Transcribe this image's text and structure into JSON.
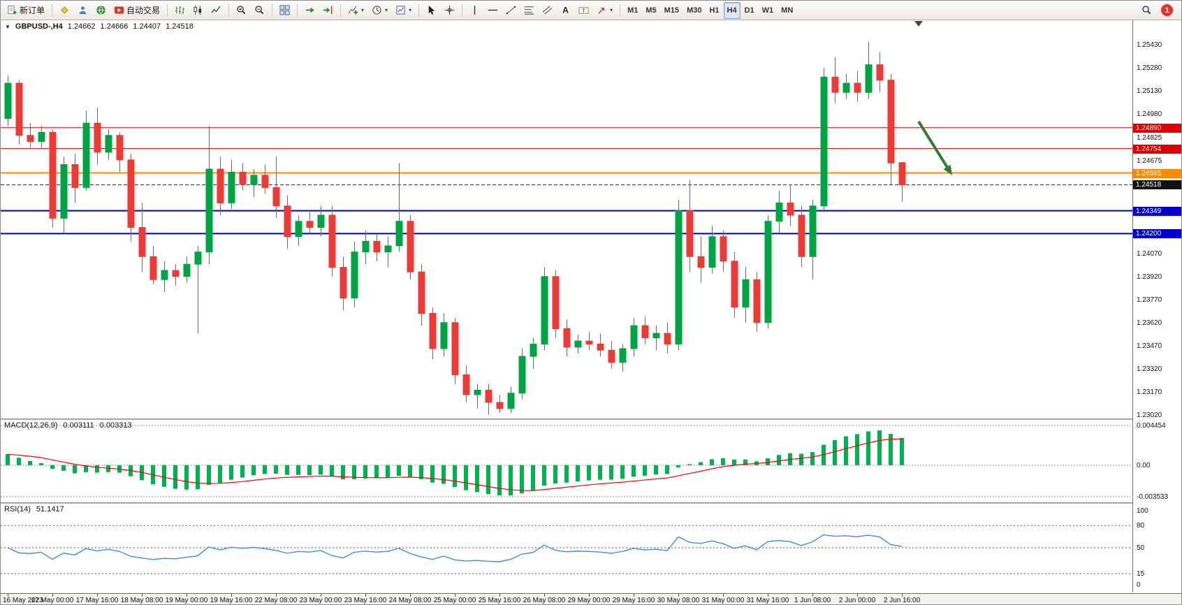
{
  "toolbar": {
    "caret": "▾",
    "notification_count": "1",
    "groups": [
      {
        "items": [
          {
            "name": "new-order-button",
            "icon": "doc-plus",
            "label": "新订单"
          }
        ]
      },
      {
        "items": [
          {
            "name": "market-watch-button",
            "icon": "diamond"
          },
          {
            "name": "navigator-button",
            "icon": "person"
          },
          {
            "name": "terminal-button",
            "icon": "terminal"
          },
          {
            "name": "autotrading-button",
            "icon": "play",
            "label": "自动交易"
          }
        ]
      },
      {
        "items": [
          {
            "name": "bar-chart-button",
            "icon": "bars"
          },
          {
            "name": "candlestick-chart-button",
            "icon": "candles"
          },
          {
            "name": "line-chart-button",
            "icon": "linechart"
          }
        ]
      },
      {
        "items": [
          {
            "name": "zoom-in-button",
            "icon": "zoom-in"
          },
          {
            "name": "zoom-out-button",
            "icon": "zoom-out"
          }
        ]
      },
      {
        "items": [
          {
            "name": "tile-windows-button",
            "icon": "tile"
          }
        ]
      },
      {
        "items": [
          {
            "name": "auto-scroll-button",
            "icon": "autoscroll"
          },
          {
            "name": "chart-shift-button",
            "icon": "chartshift"
          }
        ]
      },
      {
        "items": [
          {
            "name": "indicators-button",
            "icon": "indicator-plus",
            "dropdown": true
          },
          {
            "name": "periods-button",
            "icon": "clock",
            "dropdown": true
          },
          {
            "name": "templates-button",
            "icon": "template",
            "dropdown": true
          }
        ]
      },
      {
        "items": [
          {
            "name": "cursor-button",
            "icon": "pointer"
          },
          {
            "name": "crosshair-button",
            "icon": "crosshair"
          }
        ]
      },
      {
        "items": [
          {
            "name": "vertical-line-button",
            "icon": "vline"
          },
          {
            "name": "horizontal-line-button",
            "icon": "hline"
          },
          {
            "name": "trendline-button",
            "icon": "trendline"
          },
          {
            "name": "fibonacci-button",
            "icon": "fibo"
          },
          {
            "name": "channel-button",
            "icon": "channel"
          },
          {
            "name": "text-button",
            "icon": "textA"
          },
          {
            "name": "label-button",
            "icon": "textlabel"
          },
          {
            "name": "arrows-button",
            "icon": "arrowtool",
            "dropdown": true
          }
        ]
      },
      {
        "kind": "timeframes",
        "items": [
          {
            "name": "timeframe-m1",
            "label": "M1"
          },
          {
            "name": "timeframe-m5",
            "label": "M5"
          },
          {
            "name": "timeframe-m15",
            "label": "M15"
          },
          {
            "name": "timeframe-m30",
            "label": "M30"
          },
          {
            "name": "timeframe-h1",
            "label": "H1"
          },
          {
            "name": "timeframe-h4",
            "label": "H4",
            "active": true
          },
          {
            "name": "timeframe-d1",
            "label": "D1"
          },
          {
            "name": "timeframe-w1",
            "label": "W1"
          },
          {
            "name": "timeframe-mn",
            "label": "MN"
          }
        ]
      }
    ]
  },
  "chart_data": {
    "type": "candlestick",
    "symbol_period": "GBPUSD-,H4",
    "chart_title_marker": "▼",
    "ohlc_display": {
      "open": "1.24662",
      "high": "1.24666",
      "low": "1.24407",
      "close": "1.24518"
    },
    "up_color": "#00a443",
    "down_color": "#ea3b34",
    "price_axis": {
      "min": 1.22995,
      "max": 1.2559,
      "tick_labels": [
        "1.25430",
        "1.25280",
        "1.25130",
        "1.24980",
        "1.24825",
        "1.24675",
        "1.24070",
        "1.23920",
        "1.23770",
        "1.23620",
        "1.23470",
        "1.23320",
        "1.23170",
        "1.23020"
      ],
      "badges": [
        {
          "label": "1.24890",
          "price": 1.2489,
          "color": "#e00000"
        },
        {
          "label": "1.24754",
          "price": 1.24754,
          "color": "#e00000"
        },
        {
          "label": "1.24595",
          "price": 1.24595,
          "color": "#ff8a00"
        },
        {
          "label": "1.24518",
          "price": 1.24518,
          "color": "#111111",
          "current": true
        },
        {
          "label": "1.24349",
          "price": 1.24349,
          "color": "#0000cc"
        },
        {
          "label": "1.24200",
          "price": 1.242,
          "color": "#0000cc"
        }
      ]
    },
    "hlines": [
      {
        "price": 1.2489,
        "color": "#e00000",
        "width": 1
      },
      {
        "price": 1.24754,
        "color": "#e00000",
        "width": 1
      },
      {
        "price": 1.24595,
        "color": "#ff8a00",
        "width": 2
      },
      {
        "price": 1.24349,
        "color": "#0000cc",
        "width": 2
      },
      {
        "price": 1.242,
        "color": "#0000cc",
        "width": 2
      }
    ],
    "current_price": {
      "price": 1.24518,
      "label": "1.24518"
    },
    "shift_marker_bar": 81.5,
    "annotation_arrow": {
      "x1_bar": 81.5,
      "y1_price": 1.2493,
      "x2_bar": 84.5,
      "y2_price": 1.2458,
      "color": "#2e7d32"
    },
    "candles": [
      [
        1.2495,
        1.2523,
        1.249,
        1.2518
      ],
      [
        1.2518,
        1.252,
        1.2478,
        1.2484
      ],
      [
        1.2484,
        1.2492,
        1.2476,
        1.248
      ],
      [
        1.248,
        1.249,
        1.2476,
        1.2486
      ],
      [
        1.2486,
        1.2488,
        1.2424,
        1.243
      ],
      [
        1.243,
        1.247,
        1.242,
        1.2465
      ],
      [
        1.2465,
        1.2472,
        1.244,
        1.245
      ],
      [
        1.245,
        1.25,
        1.2448,
        1.2492
      ],
      [
        1.2492,
        1.2502,
        1.2465,
        1.2473
      ],
      [
        1.2473,
        1.2488,
        1.2468,
        1.2484
      ],
      [
        1.2484,
        1.2486,
        1.246,
        1.2468
      ],
      [
        1.2468,
        1.2472,
        1.2415,
        1.2424
      ],
      [
        1.2424,
        1.244,
        1.2395,
        1.2405
      ],
      [
        1.2405,
        1.2412,
        1.2387,
        1.239
      ],
      [
        1.239,
        1.2402,
        1.2382,
        1.2396
      ],
      [
        1.2396,
        1.24,
        1.2386,
        1.2392
      ],
      [
        1.2392,
        1.2405,
        1.2388,
        1.24
      ],
      [
        1.24,
        1.2412,
        1.2355,
        1.2408
      ],
      [
        1.2408,
        1.249,
        1.24,
        1.2462
      ],
      [
        1.2462,
        1.247,
        1.2432,
        1.244
      ],
      [
        1.244,
        1.2468,
        1.2436,
        1.246
      ],
      [
        1.246,
        1.2466,
        1.2448,
        1.2452
      ],
      [
        1.2452,
        1.2462,
        1.2444,
        1.2458
      ],
      [
        1.2458,
        1.2465,
        1.2446,
        1.245
      ],
      [
        1.245,
        1.247,
        1.243,
        1.2438
      ],
      [
        1.2438,
        1.2445,
        1.241,
        1.2418
      ],
      [
        1.2418,
        1.2432,
        1.2412,
        1.2428
      ],
      [
        1.2428,
        1.2434,
        1.242,
        1.2424
      ],
      [
        1.2424,
        1.2438,
        1.2418,
        1.2432
      ],
      [
        1.2432,
        1.2438,
        1.2392,
        1.2398
      ],
      [
        1.2398,
        1.2405,
        1.237,
        1.2378
      ],
      [
        1.2378,
        1.2415,
        1.2372,
        1.2408
      ],
      [
        1.2408,
        1.2422,
        1.24,
        1.2415
      ],
      [
        1.2415,
        1.242,
        1.2402,
        1.2408
      ],
      [
        1.2408,
        1.2418,
        1.2398,
        1.2412
      ],
      [
        1.2412,
        1.2466,
        1.2408,
        1.2428
      ],
      [
        1.2428,
        1.2432,
        1.239,
        1.2395
      ],
      [
        1.2395,
        1.24,
        1.236,
        1.2368
      ],
      [
        1.2368,
        1.2372,
        1.2338,
        1.2345
      ],
      [
        1.2345,
        1.2368,
        1.234,
        1.2362
      ],
      [
        1.2362,
        1.2365,
        1.2322,
        1.2328
      ],
      [
        1.2328,
        1.2334,
        1.231,
        1.2315
      ],
      [
        1.2315,
        1.2322,
        1.2306,
        1.2318
      ],
      [
        1.2318,
        1.2322,
        1.2302,
        1.231
      ],
      [
        1.231,
        1.2315,
        1.2303,
        1.2306
      ],
      [
        1.2306,
        1.232,
        1.2303,
        1.2316
      ],
      [
        1.2316,
        1.2345,
        1.2312,
        1.234
      ],
      [
        1.234,
        1.2352,
        1.2332,
        1.2348
      ],
      [
        1.2348,
        1.2398,
        1.2344,
        1.2392
      ],
      [
        1.2392,
        1.2396,
        1.2352,
        1.2358
      ],
      [
        1.2358,
        1.2364,
        1.234,
        1.2346
      ],
      [
        1.2346,
        1.2354,
        1.2342,
        1.235
      ],
      [
        1.235,
        1.2356,
        1.2344,
        1.2348
      ],
      [
        1.2348,
        1.2355,
        1.234,
        1.2344
      ],
      [
        1.2344,
        1.235,
        1.2332,
        1.2336
      ],
      [
        1.2336,
        1.2348,
        1.233,
        1.2345
      ],
      [
        1.2345,
        1.2365,
        1.234,
        1.236
      ],
      [
        1.236,
        1.2366,
        1.2348,
        1.2352
      ],
      [
        1.2352,
        1.236,
        1.2344,
        1.2355
      ],
      [
        1.2355,
        1.2362,
        1.2342,
        1.2348
      ],
      [
        1.2348,
        1.2442,
        1.2344,
        1.2435
      ],
      [
        1.2435,
        1.2455,
        1.2395,
        1.2405
      ],
      [
        1.2405,
        1.2418,
        1.2388,
        1.2398
      ],
      [
        1.2398,
        1.2425,
        1.2394,
        1.2418
      ],
      [
        1.2418,
        1.2422,
        1.2395,
        1.2402
      ],
      [
        1.2402,
        1.2408,
        1.2365,
        1.2372
      ],
      [
        1.2372,
        1.2398,
        1.2362,
        1.239
      ],
      [
        1.239,
        1.2395,
        1.2356,
        1.2362
      ],
      [
        1.2362,
        1.2432,
        1.2358,
        1.2428
      ],
      [
        1.2428,
        1.2448,
        1.242,
        1.244
      ],
      [
        1.244,
        1.2452,
        1.2425,
        1.2432
      ],
      [
        1.2432,
        1.2438,
        1.2398,
        1.2405
      ],
      [
        1.2405,
        1.2442,
        1.239,
        1.2438
      ],
      [
        1.2438,
        1.2528,
        1.2434,
        1.2522
      ],
      [
        1.2522,
        1.2535,
        1.2505,
        1.2512
      ],
      [
        1.2512,
        1.2524,
        1.2508,
        1.2518
      ],
      [
        1.2518,
        1.2526,
        1.2506,
        1.2512
      ],
      [
        1.2512,
        1.2545,
        1.2508,
        1.253
      ],
      [
        1.253,
        1.2538,
        1.2512,
        1.252
      ],
      [
        1.252,
        1.2524,
        1.2452,
        1.2466
      ],
      [
        1.24662,
        1.24666,
        1.24407,
        1.24518
      ]
    ],
    "time_labels": [
      {
        "i": 0,
        "t": "16 May 2023"
      },
      {
        "i": 4,
        "t": "17 May 00:00"
      },
      {
        "i": 8,
        "t": "17 May 16:00"
      },
      {
        "i": 12,
        "t": "18 May 08:00"
      },
      {
        "i": 16,
        "t": "19 May 00:00"
      },
      {
        "i": 20,
        "t": "19 May 16:00"
      },
      {
        "i": 24,
        "t": "22 May 08:00"
      },
      {
        "i": 28,
        "t": "23 May 00:00"
      },
      {
        "i": 32,
        "t": "23 May 16:00"
      },
      {
        "i": 36,
        "t": "24 May 08:00"
      },
      {
        "i": 40,
        "t": "25 May 00:00"
      },
      {
        "i": 44,
        "t": "25 May 16:00"
      },
      {
        "i": 48,
        "t": "26 May 08:00"
      },
      {
        "i": 52,
        "t": "29 May 00:00"
      },
      {
        "i": 56,
        "t": "29 May 16:00"
      },
      {
        "i": 60,
        "t": "30 May 08:00"
      },
      {
        "i": 64,
        "t": "31 May 00:00"
      },
      {
        "i": 68,
        "t": "31 May 16:00"
      },
      {
        "i": 72,
        "t": "1 Jun 08:00"
      },
      {
        "i": 76,
        "t": "2 Jun 00:00"
      },
      {
        "i": 80,
        "t": "2 Jun 16:00"
      }
    ],
    "indicators": [
      {
        "type": "MACD",
        "label": "MACD(12,26,9)",
        "params": [
          12,
          26,
          9
        ],
        "values_display": [
          "0.003111",
          "0.003313"
        ],
        "scale_labels": [
          "0.004454",
          "0.00",
          "-0.003533"
        ],
        "histogram_color": "#00b050",
        "signal_color": "#ff0000"
      },
      {
        "type": "RSI",
        "label": "RSI(14)",
        "period": 14,
        "value_display": "51.1417",
        "levels": [
          100,
          80,
          50,
          15,
          0
        ],
        "level_lines": [
          80,
          50,
          15
        ],
        "line_color": "#3e8ede"
      }
    ]
  }
}
